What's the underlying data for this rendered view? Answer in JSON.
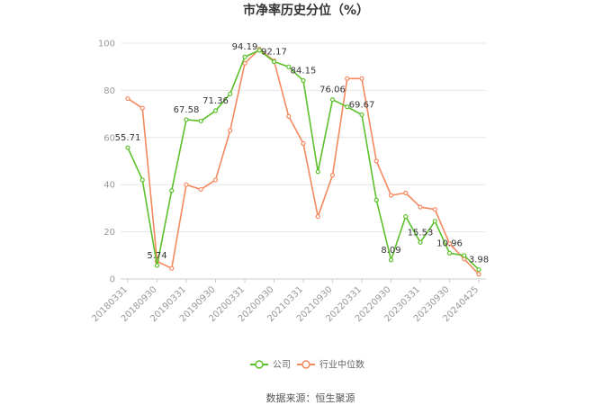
{
  "chart_data": {
    "type": "line",
    "title": "市净率历史分位（%）",
    "xlabel": "",
    "ylabel": "",
    "ylim": [
      0,
      100
    ],
    "yticks": [
      0,
      20,
      40,
      60,
      80,
      100
    ],
    "x": [
      "20180331",
      "20180630",
      "20180930",
      "20181231",
      "20190331",
      "20190630",
      "20190930",
      "20191231",
      "20200331",
      "20200630",
      "20200930",
      "20201231",
      "20210331",
      "20210630",
      "20210930",
      "20211231",
      "20220331",
      "20220630",
      "20220930",
      "20221231",
      "20230331",
      "20230630",
      "20230930",
      "20231231",
      "20240425"
    ],
    "xtick_labels": [
      "20180331",
      "20180930",
      "20190331",
      "20190930",
      "20200331",
      "20200930",
      "20210331",
      "20210930",
      "20220331",
      "20220930",
      "20230331",
      "20230930",
      "20240425"
    ],
    "series": [
      {
        "name": "公司",
        "color": "#5cc02a",
        "values": [
          55.71,
          42.0,
          5.74,
          37.5,
          67.58,
          67.0,
          71.36,
          78.5,
          94.19,
          97.0,
          92.17,
          90.0,
          84.15,
          45.5,
          76.06,
          73.0,
          69.67,
          33.5,
          8.09,
          26.5,
          15.53,
          24.5,
          10.96,
          10.0,
          3.98
        ],
        "labels": {
          "0": "55.71",
          "2": "5.74",
          "4": "67.58",
          "6": "71.36",
          "8": "94.19",
          "10": "92.17",
          "12": "84.15",
          "14": "76.06",
          "16": "69.67",
          "18": "8.09",
          "20": "15.53",
          "22": "10.96",
          "24": "3.98"
        }
      },
      {
        "name": "行业中位数",
        "color": "#f4895f",
        "values": [
          76.5,
          72.5,
          7.5,
          4.5,
          40.0,
          38.0,
          42.0,
          63.0,
          91.5,
          97.5,
          92.5,
          69.0,
          57.5,
          26.5,
          44.0,
          85.0,
          85.0,
          50.0,
          35.5,
          36.5,
          30.5,
          29.5,
          15.0,
          8.5,
          2.0
        ]
      }
    ],
    "legend": "bottom-center",
    "grid": true
  },
  "source_text": "数据来源：恒生聚源"
}
